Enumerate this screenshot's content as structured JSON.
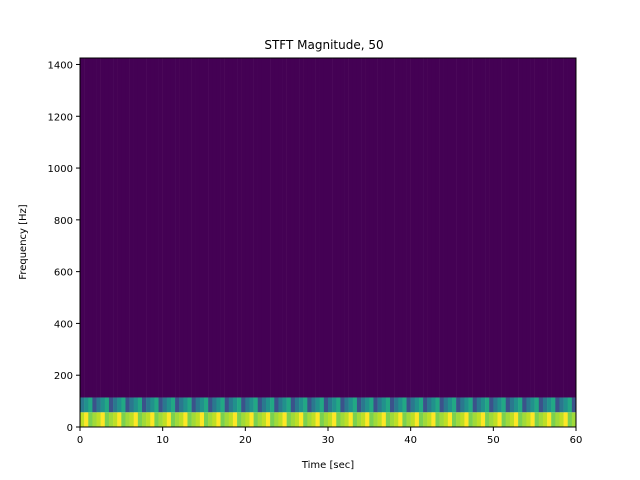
{
  "chart_data": {
    "type": "heatmap",
    "title": "STFT Magnitude, 50",
    "xlabel": "Time [sec]",
    "ylabel": "Frequency [Hz]",
    "xlim": [
      0,
      60
    ],
    "ylim": [
      0,
      1425
    ],
    "xticks": [
      "0",
      "10",
      "20",
      "30",
      "40",
      "50",
      "60"
    ],
    "yticks": [
      "0",
      "200",
      "400",
      "600",
      "800",
      "1000",
      "1200",
      "1400"
    ],
    "colormap": "viridis",
    "grid": false,
    "legend": "none",
    "time_frames": 120,
    "frequency_bands": [
      {
        "f_low": 0,
        "f_high": 57,
        "level": "high",
        "colors": [
          "#bddf26",
          "#fde725",
          "#7ad151",
          "#a0da39"
        ]
      },
      {
        "f_low": 57,
        "f_high": 114,
        "level": "medium",
        "colors": [
          "#2a788e",
          "#21918c",
          "#22a884",
          "#3b528b"
        ]
      },
      {
        "f_low": 114,
        "f_high": 1425,
        "level": "zero",
        "colors": [
          "#440154"
        ]
      }
    ]
  }
}
